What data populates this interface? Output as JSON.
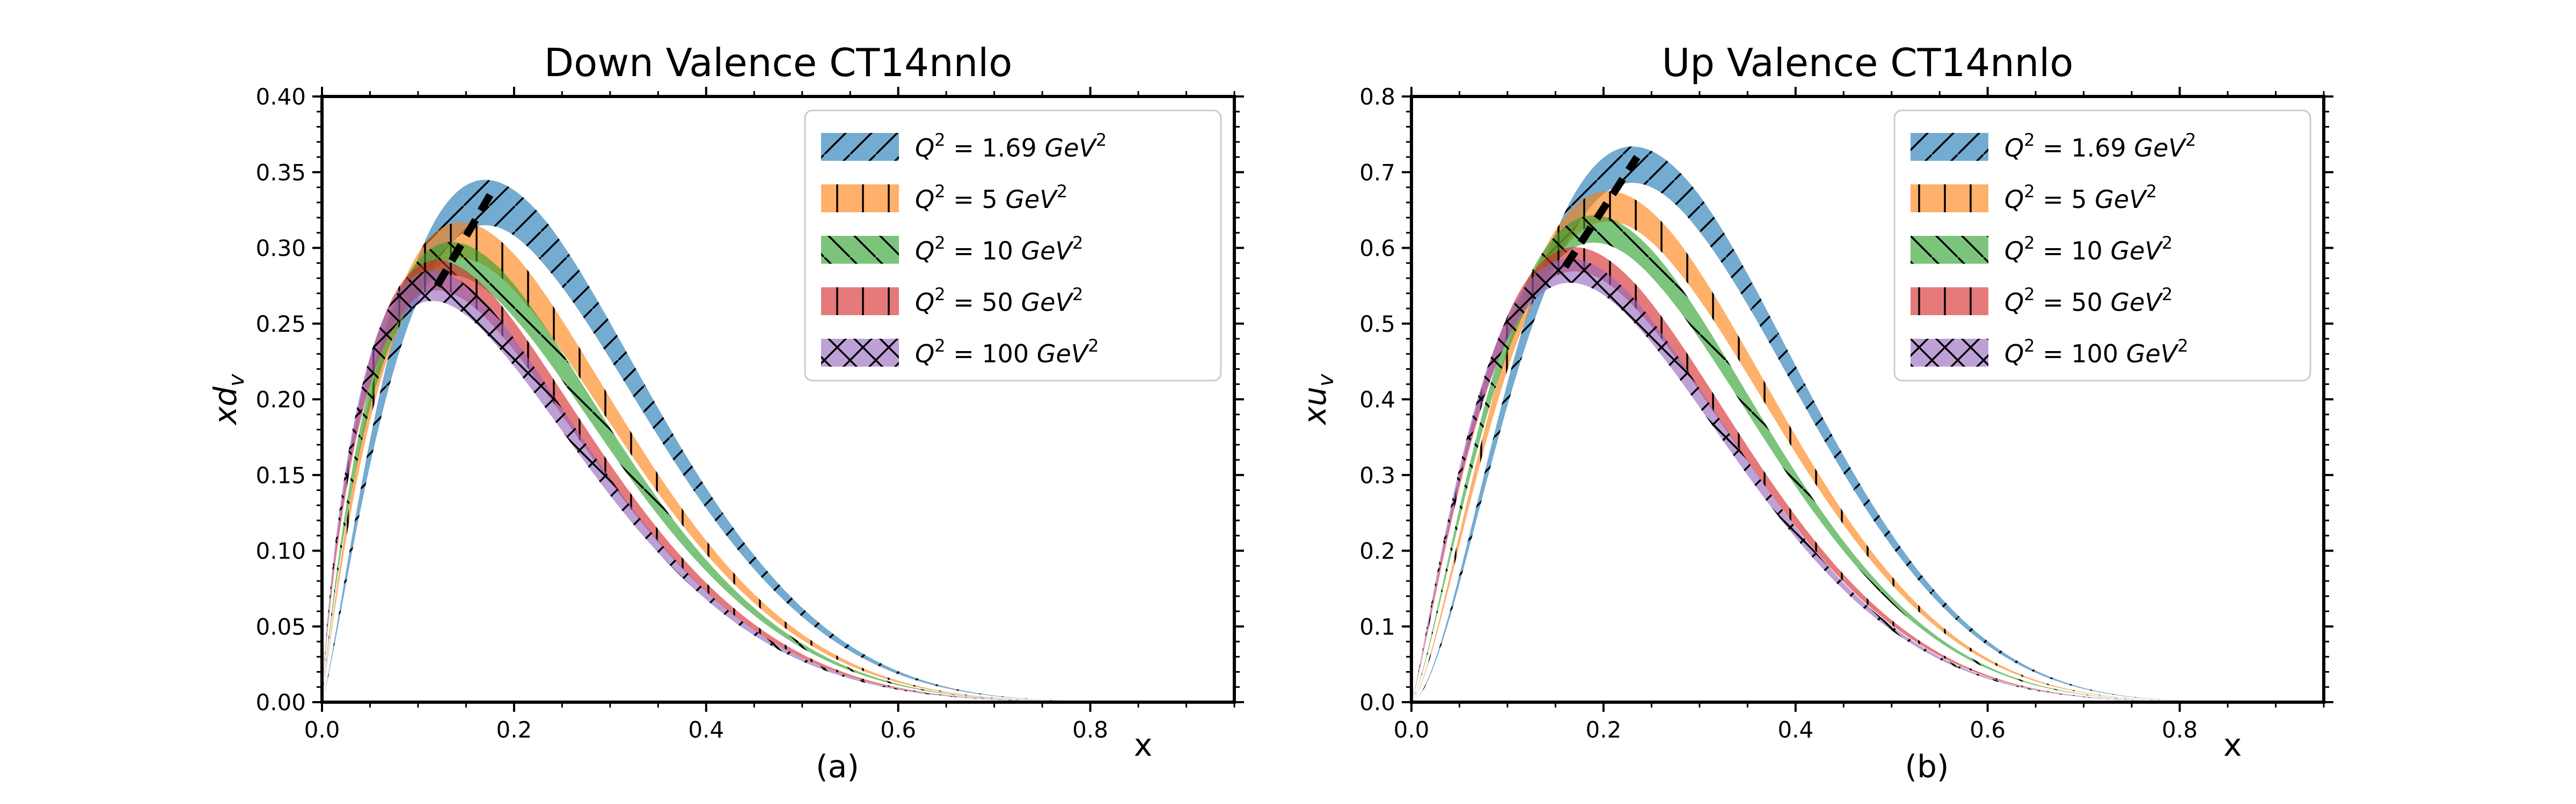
{
  "chart_data": [
    {
      "type": "area",
      "title": "Down Valence CT14nnlo",
      "caption": "(a)",
      "xlabel": "x",
      "ylabel": "xd",
      "ylabel_sub": "v",
      "xlim": [
        0.0,
        0.95
      ],
      "ylim": [
        0.0,
        0.4
      ],
      "xticks": [
        "0.0",
        "0.2",
        "0.4",
        "0.6",
        "0.8"
      ],
      "yticks": [
        "0.00",
        "0.05",
        "0.10",
        "0.15",
        "0.20",
        "0.25",
        "0.30",
        "0.35",
        "0.40"
      ],
      "peak_line": [
        [
          0.12,
          0.275
        ],
        [
          0.175,
          0.335
        ]
      ],
      "series": [
        {
          "name": "Q² = 1.69 GeV²",
          "legend_q": "1.69",
          "color": "#1f77b4",
          "hatch": "slash",
          "peak_x": 0.17,
          "peak_y": 0.33,
          "halfwidth": 0.015
        },
        {
          "name": "Q² = 5 GeV²",
          "legend_q": "5",
          "color": "#ff7f0e",
          "hatch": "vertical",
          "peak_x": 0.145,
          "peak_y": 0.305,
          "halfwidth": 0.012
        },
        {
          "name": "Q² = 10 GeV²",
          "legend_q": "10",
          "color": "#2ca02c",
          "hatch": "backslash",
          "peak_x": 0.135,
          "peak_y": 0.293,
          "halfwidth": 0.011
        },
        {
          "name": "Q² = 50 GeV²",
          "legend_q": "50",
          "color": "#d62728",
          "hatch": "vertical",
          "peak_x": 0.12,
          "peak_y": 0.282,
          "halfwidth": 0.01
        },
        {
          "name": "Q² = 100 GeV²",
          "legend_q": "100",
          "color": "#9467bd",
          "hatch": "cross",
          "peak_x": 0.115,
          "peak_y": 0.275,
          "halfwidth": 0.01
        }
      ]
    },
    {
      "type": "area",
      "title": "Up Valence CT14nnlo",
      "caption": "(b)",
      "xlabel": "x",
      "ylabel": "xu",
      "ylabel_sub": "v",
      "xlim": [
        0.0,
        0.95
      ],
      "ylim": [
        0.0,
        0.8
      ],
      "xticks": [
        "0.0",
        "0.2",
        "0.4",
        "0.6",
        "0.8"
      ],
      "yticks": [
        "0.0",
        "0.1",
        "0.2",
        "0.3",
        "0.4",
        "0.5",
        "0.6",
        "0.7",
        "0.8"
      ],
      "peak_line": [
        [
          0.16,
          0.575
        ],
        [
          0.235,
          0.72
        ]
      ],
      "series": [
        {
          "name": "Q² = 1.69 GeV²",
          "legend_q": "1.69",
          "color": "#1f77b4",
          "hatch": "slash",
          "peak_x": 0.23,
          "peak_y": 0.71,
          "halfwidth": 0.012
        },
        {
          "name": "Q² = 5 GeV²",
          "legend_q": "5",
          "color": "#ff7f0e",
          "hatch": "vertical",
          "peak_x": 0.205,
          "peak_y": 0.655,
          "halfwidth": 0.01
        },
        {
          "name": "Q² = 10 GeV²",
          "legend_q": "10",
          "color": "#2ca02c",
          "hatch": "backslash",
          "peak_x": 0.19,
          "peak_y": 0.625,
          "halfwidth": 0.009
        },
        {
          "name": "Q² = 50 GeV²",
          "legend_q": "50",
          "color": "#d62728",
          "hatch": "vertical",
          "peak_x": 0.17,
          "peak_y": 0.585,
          "halfwidth": 0.008
        },
        {
          "name": "Q² = 100 GeV²",
          "legend_q": "100",
          "color": "#9467bd",
          "hatch": "cross",
          "peak_x": 0.165,
          "peak_y": 0.57,
          "halfwidth": 0.008
        }
      ]
    }
  ]
}
